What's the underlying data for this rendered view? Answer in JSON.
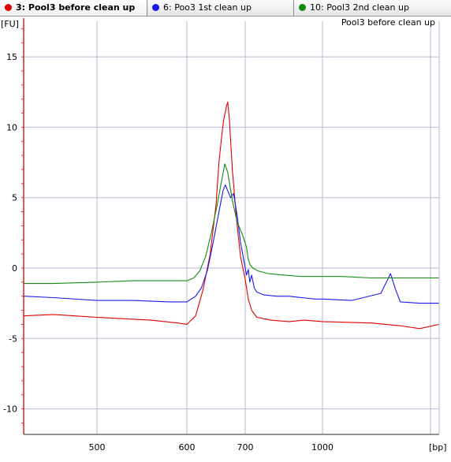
{
  "tabs": [
    {
      "label": "3: Pool3 before clean up",
      "color": "#e00000",
      "active": true
    },
    {
      "label": "6: Poo3 1st clean up",
      "color": "#1a1aee",
      "active": false
    },
    {
      "label": "10: Pool3 2nd clean up",
      "color": "#138a13",
      "active": false
    }
  ],
  "chart_data": {
    "type": "line",
    "title": "Pool3 before clean up",
    "xlabel": "[bp]",
    "ylabel": "[FU]",
    "x_scale": "nonlinear",
    "x_ticks": [
      500,
      600,
      700,
      1000
    ],
    "y_ticks": [
      -10,
      -5,
      0,
      5,
      10,
      15
    ],
    "ylim": [
      -11.8,
      17.3
    ],
    "xlim": [
      433,
      1120
    ],
    "grid": true,
    "series": [
      {
        "label": "3: Pool3 before clean up",
        "color": "#e00000",
        "points": [
          [
            433,
            -3.4
          ],
          [
            460,
            -3.3
          ],
          [
            480,
            -3.4
          ],
          [
            500,
            -3.5
          ],
          [
            530,
            -3.6
          ],
          [
            560,
            -3.7
          ],
          [
            590,
            -3.9
          ],
          [
            600,
            -4.0
          ],
          [
            615,
            -3.4
          ],
          [
            628,
            -1.5
          ],
          [
            640,
            1.0
          ],
          [
            650,
            4.5
          ],
          [
            655,
            7.5
          ],
          [
            660,
            9.5
          ],
          [
            663,
            10.5
          ],
          [
            668,
            11.5
          ],
          [
            670,
            11.8
          ],
          [
            673,
            10.5
          ],
          [
            678,
            7.0
          ],
          [
            685,
            3.5
          ],
          [
            692,
            0.8
          ],
          [
            700,
            -0.8
          ],
          [
            712,
            -2.2
          ],
          [
            725,
            -3.0
          ],
          [
            745,
            -3.5
          ],
          [
            800,
            -3.7
          ],
          [
            870,
            -3.8
          ],
          [
            930,
            -3.7
          ],
          [
            1000,
            -3.8
          ],
          [
            1050,
            -3.9
          ],
          [
            1080,
            -4.1
          ],
          [
            1100,
            -4.3
          ],
          [
            1120,
            -4.0
          ]
        ]
      },
      {
        "label": "6: Poo3 1st clean up",
        "color": "#1a1aee",
        "points": [
          [
            433,
            -2.0
          ],
          [
            460,
            -2.1
          ],
          [
            500,
            -2.3
          ],
          [
            540,
            -2.3
          ],
          [
            580,
            -2.4
          ],
          [
            600,
            -2.4
          ],
          [
            615,
            -2.0
          ],
          [
            625,
            -1.4
          ],
          [
            635,
            -0.2
          ],
          [
            645,
            1.8
          ],
          [
            655,
            4.0
          ],
          [
            662,
            5.5
          ],
          [
            666,
            5.9
          ],
          [
            670,
            5.5
          ],
          [
            675,
            5.0
          ],
          [
            680,
            5.3
          ],
          [
            686,
            3.8
          ],
          [
            692,
            1.8
          ],
          [
            698,
            0.5
          ],
          [
            705,
            -0.5
          ],
          [
            712,
            -0.1
          ],
          [
            718,
            -1.0
          ],
          [
            725,
            -0.5
          ],
          [
            735,
            -1.4
          ],
          [
            745,
            -1.7
          ],
          [
            770,
            -1.9
          ],
          [
            820,
            -2.0
          ],
          [
            870,
            -2.0
          ],
          [
            920,
            -2.1
          ],
          [
            970,
            -2.2
          ],
          [
            1000,
            -2.2
          ],
          [
            1030,
            -2.3
          ],
          [
            1060,
            -1.8
          ],
          [
            1070,
            -0.4
          ],
          [
            1075,
            -1.5
          ],
          [
            1080,
            -2.4
          ],
          [
            1100,
            -2.5
          ],
          [
            1120,
            -2.5
          ]
        ]
      },
      {
        "label": "10: Pool3 2nd clean up",
        "color": "#138a13",
        "points": [
          [
            433,
            -1.1
          ],
          [
            460,
            -1.1
          ],
          [
            500,
            -1.0
          ],
          [
            540,
            -0.9
          ],
          [
            580,
            -0.9
          ],
          [
            600,
            -0.9
          ],
          [
            612,
            -0.7
          ],
          [
            622,
            -0.2
          ],
          [
            632,
            0.8
          ],
          [
            642,
            2.5
          ],
          [
            652,
            4.5
          ],
          [
            660,
            6.3
          ],
          [
            665,
            7.4
          ],
          [
            670,
            6.8
          ],
          [
            678,
            4.8
          ],
          [
            686,
            3.3
          ],
          [
            695,
            2.4
          ],
          [
            705,
            1.5
          ],
          [
            712,
            0.6
          ],
          [
            720,
            0.2
          ],
          [
            730,
            0.0
          ],
          [
            750,
            -0.2
          ],
          [
            790,
            -0.4
          ],
          [
            850,
            -0.5
          ],
          [
            920,
            -0.6
          ],
          [
            980,
            -0.6
          ],
          [
            1020,
            -0.6
          ],
          [
            1050,
            -0.7
          ],
          [
            1080,
            -0.7
          ],
          [
            1100,
            -0.7
          ],
          [
            1120,
            -0.7
          ]
        ]
      }
    ]
  }
}
